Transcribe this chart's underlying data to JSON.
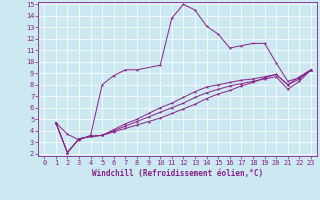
{
  "xlabel": "Windchill (Refroidissement éolien,°C)",
  "bg_color": "#cce8f0",
  "grid_color": "#ffffff",
  "line_color": "#882288",
  "xlim": [
    -0.5,
    23.5
  ],
  "ylim": [
    1.8,
    15.2
  ],
  "xticks": [
    0,
    1,
    2,
    3,
    4,
    5,
    6,
    7,
    8,
    9,
    10,
    11,
    12,
    13,
    14,
    15,
    16,
    17,
    18,
    19,
    20,
    21,
    22,
    23
  ],
  "yticks": [
    2,
    3,
    4,
    5,
    6,
    7,
    8,
    9,
    10,
    11,
    12,
    13,
    14,
    15
  ],
  "line1_x": [
    1,
    2,
    3,
    4,
    5,
    6,
    7,
    8,
    10,
    11,
    12,
    13,
    14,
    15,
    16,
    17,
    18,
    19,
    20,
    21,
    22,
    23
  ],
  "line1_y": [
    4.7,
    3.7,
    3.2,
    3.6,
    8.0,
    8.8,
    9.3,
    9.3,
    9.7,
    13.8,
    15.0,
    14.5,
    13.1,
    12.4,
    11.2,
    11.4,
    11.6,
    11.6,
    9.9,
    8.3,
    8.6,
    9.3
  ],
  "line2_x": [
    1,
    2,
    3,
    4,
    5,
    6,
    7,
    8,
    9,
    10,
    11,
    12,
    13,
    14,
    15,
    16,
    17,
    18,
    19,
    20,
    21,
    22,
    23
  ],
  "line2_y": [
    4.7,
    2.1,
    3.3,
    3.5,
    3.6,
    3.9,
    4.2,
    4.5,
    4.8,
    5.1,
    5.5,
    5.9,
    6.3,
    6.8,
    7.2,
    7.5,
    7.9,
    8.2,
    8.6,
    8.9,
    8.0,
    8.5,
    9.3
  ],
  "line3_x": [
    1,
    2,
    3,
    4,
    5,
    6,
    7,
    8,
    9,
    10,
    11,
    12,
    13,
    14,
    15,
    16,
    17,
    18,
    19,
    20,
    21,
    22,
    23
  ],
  "line3_y": [
    4.7,
    2.1,
    3.3,
    3.5,
    3.6,
    4.0,
    4.4,
    4.8,
    5.2,
    5.6,
    6.0,
    6.4,
    6.9,
    7.3,
    7.6,
    7.9,
    8.1,
    8.3,
    8.5,
    8.7,
    7.6,
    8.3,
    9.3
  ],
  "line4_x": [
    1,
    2,
    3,
    4,
    5,
    6,
    7,
    8,
    9,
    10,
    11,
    12,
    13,
    14,
    15,
    16,
    17,
    18,
    19,
    20,
    21,
    22,
    23
  ],
  "line4_y": [
    4.7,
    2.1,
    3.3,
    3.5,
    3.6,
    4.1,
    4.6,
    5.0,
    5.5,
    6.0,
    6.4,
    6.9,
    7.4,
    7.8,
    8.0,
    8.2,
    8.4,
    8.5,
    8.7,
    8.9,
    8.0,
    8.7,
    9.3
  ],
  "tick_fontsize": 5.0,
  "xlabel_fontsize": 5.5,
  "marker_size": 2.5,
  "line_width": 0.7
}
